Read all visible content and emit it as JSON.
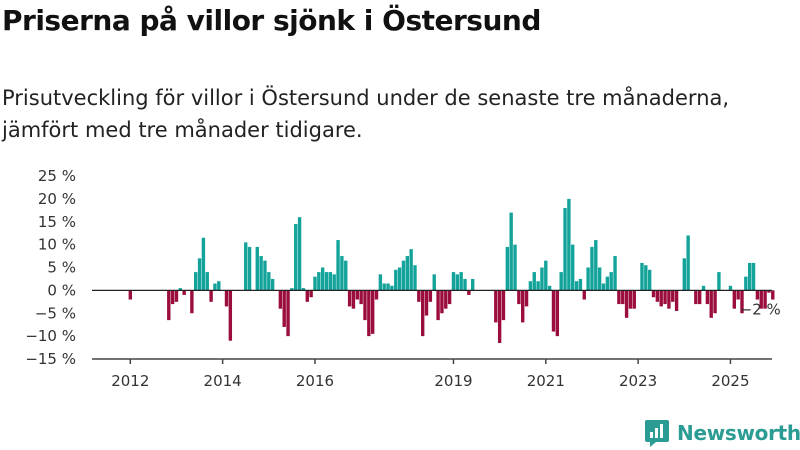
{
  "header": {
    "title": "Priserna på villor sjönk i Östersund",
    "subtitle": "Prisutveckling för villor i Östersund under de senaste tre månaderna, jämfört med tre månader tidigare."
  },
  "brand": {
    "name": "Newsworthy"
  },
  "colors": {
    "positive": "#13a39a",
    "negative": "#9b0d3d",
    "brand": "#2b9c93",
    "axis": "#444444"
  },
  "chart_data": {
    "type": "bar",
    "title": "",
    "xlabel": "",
    "ylabel": "",
    "ylim": [
      -15,
      25
    ],
    "yticks": [
      25,
      20,
      15,
      10,
      5,
      0,
      -5,
      -10,
      -15
    ],
    "ytick_labels": [
      "25 %",
      "20 %",
      "15 %",
      "10 %",
      "5 %",
      "0 %",
      "−5 %",
      "−10 %",
      "−15 %"
    ],
    "xlim": [
      2011.17,
      2025.9
    ],
    "xticks": [
      2012,
      2014,
      2016,
      2019,
      2021,
      2023,
      2025
    ],
    "xtick_labels": [
      "2012",
      "2014",
      "2016",
      "2019",
      "2021",
      "2023",
      "2025"
    ],
    "end_label": "−2 %",
    "grid": false,
    "x_start": "2011-02",
    "step": "month",
    "values": [
      0,
      0,
      0,
      0,
      0,
      0,
      0,
      0,
      0,
      0,
      0,
      -2,
      0,
      0,
      0,
      0,
      0,
      0,
      0,
      0,
      0,
      -6.5,
      -3,
      -2.5,
      0.5,
      -1,
      0,
      -5,
      4,
      7,
      11.5,
      4,
      -2.5,
      1.5,
      2,
      0,
      -3.5,
      -11,
      0,
      0,
      0,
      10.5,
      9.5,
      0,
      9.5,
      7.5,
      6.5,
      4,
      2.5,
      0,
      -4,
      -8,
      -10,
      0.5,
      14.5,
      16,
      0.5,
      -2.5,
      -1.5,
      3,
      4,
      5,
      4,
      4,
      3.5,
      11,
      7.5,
      6.5,
      -3.5,
      -4,
      -2,
      -3,
      -6.5,
      -10,
      -9.5,
      -2,
      3.5,
      1.5,
      1.5,
      1,
      4.5,
      5,
      6.5,
      7.5,
      9,
      5.5,
      -2.5,
      -10,
      -5.5,
      -2.5,
      3.5,
      -6.5,
      -5,
      -4,
      -3,
      4,
      3.5,
      4,
      2.5,
      -1,
      2.5,
      0,
      0,
      0,
      0,
      0,
      -7,
      -11.5,
      -6.5,
      9.5,
      17,
      10,
      -3,
      -7,
      -3.5,
      2,
      4,
      2,
      5,
      6.5,
      1,
      -9,
      -10,
      4,
      18,
      20,
      10,
      2,
      2.5,
      -2,
      5,
      9.5,
      11,
      5,
      1.5,
      3,
      4,
      7.5,
      -3,
      -3,
      -6,
      -4,
      -4,
      0,
      6,
      5.5,
      4.5,
      -1.5,
      -2.5,
      -3.5,
      -3,
      -4,
      -2.5,
      -4.5,
      0,
      7,
      12,
      0,
      -3,
      -3,
      1,
      -3,
      -6,
      -5,
      4,
      0,
      0,
      1,
      -4,
      -2,
      -5,
      3,
      6,
      6,
      -2,
      -4,
      -4,
      -0.5,
      -2
    ]
  }
}
